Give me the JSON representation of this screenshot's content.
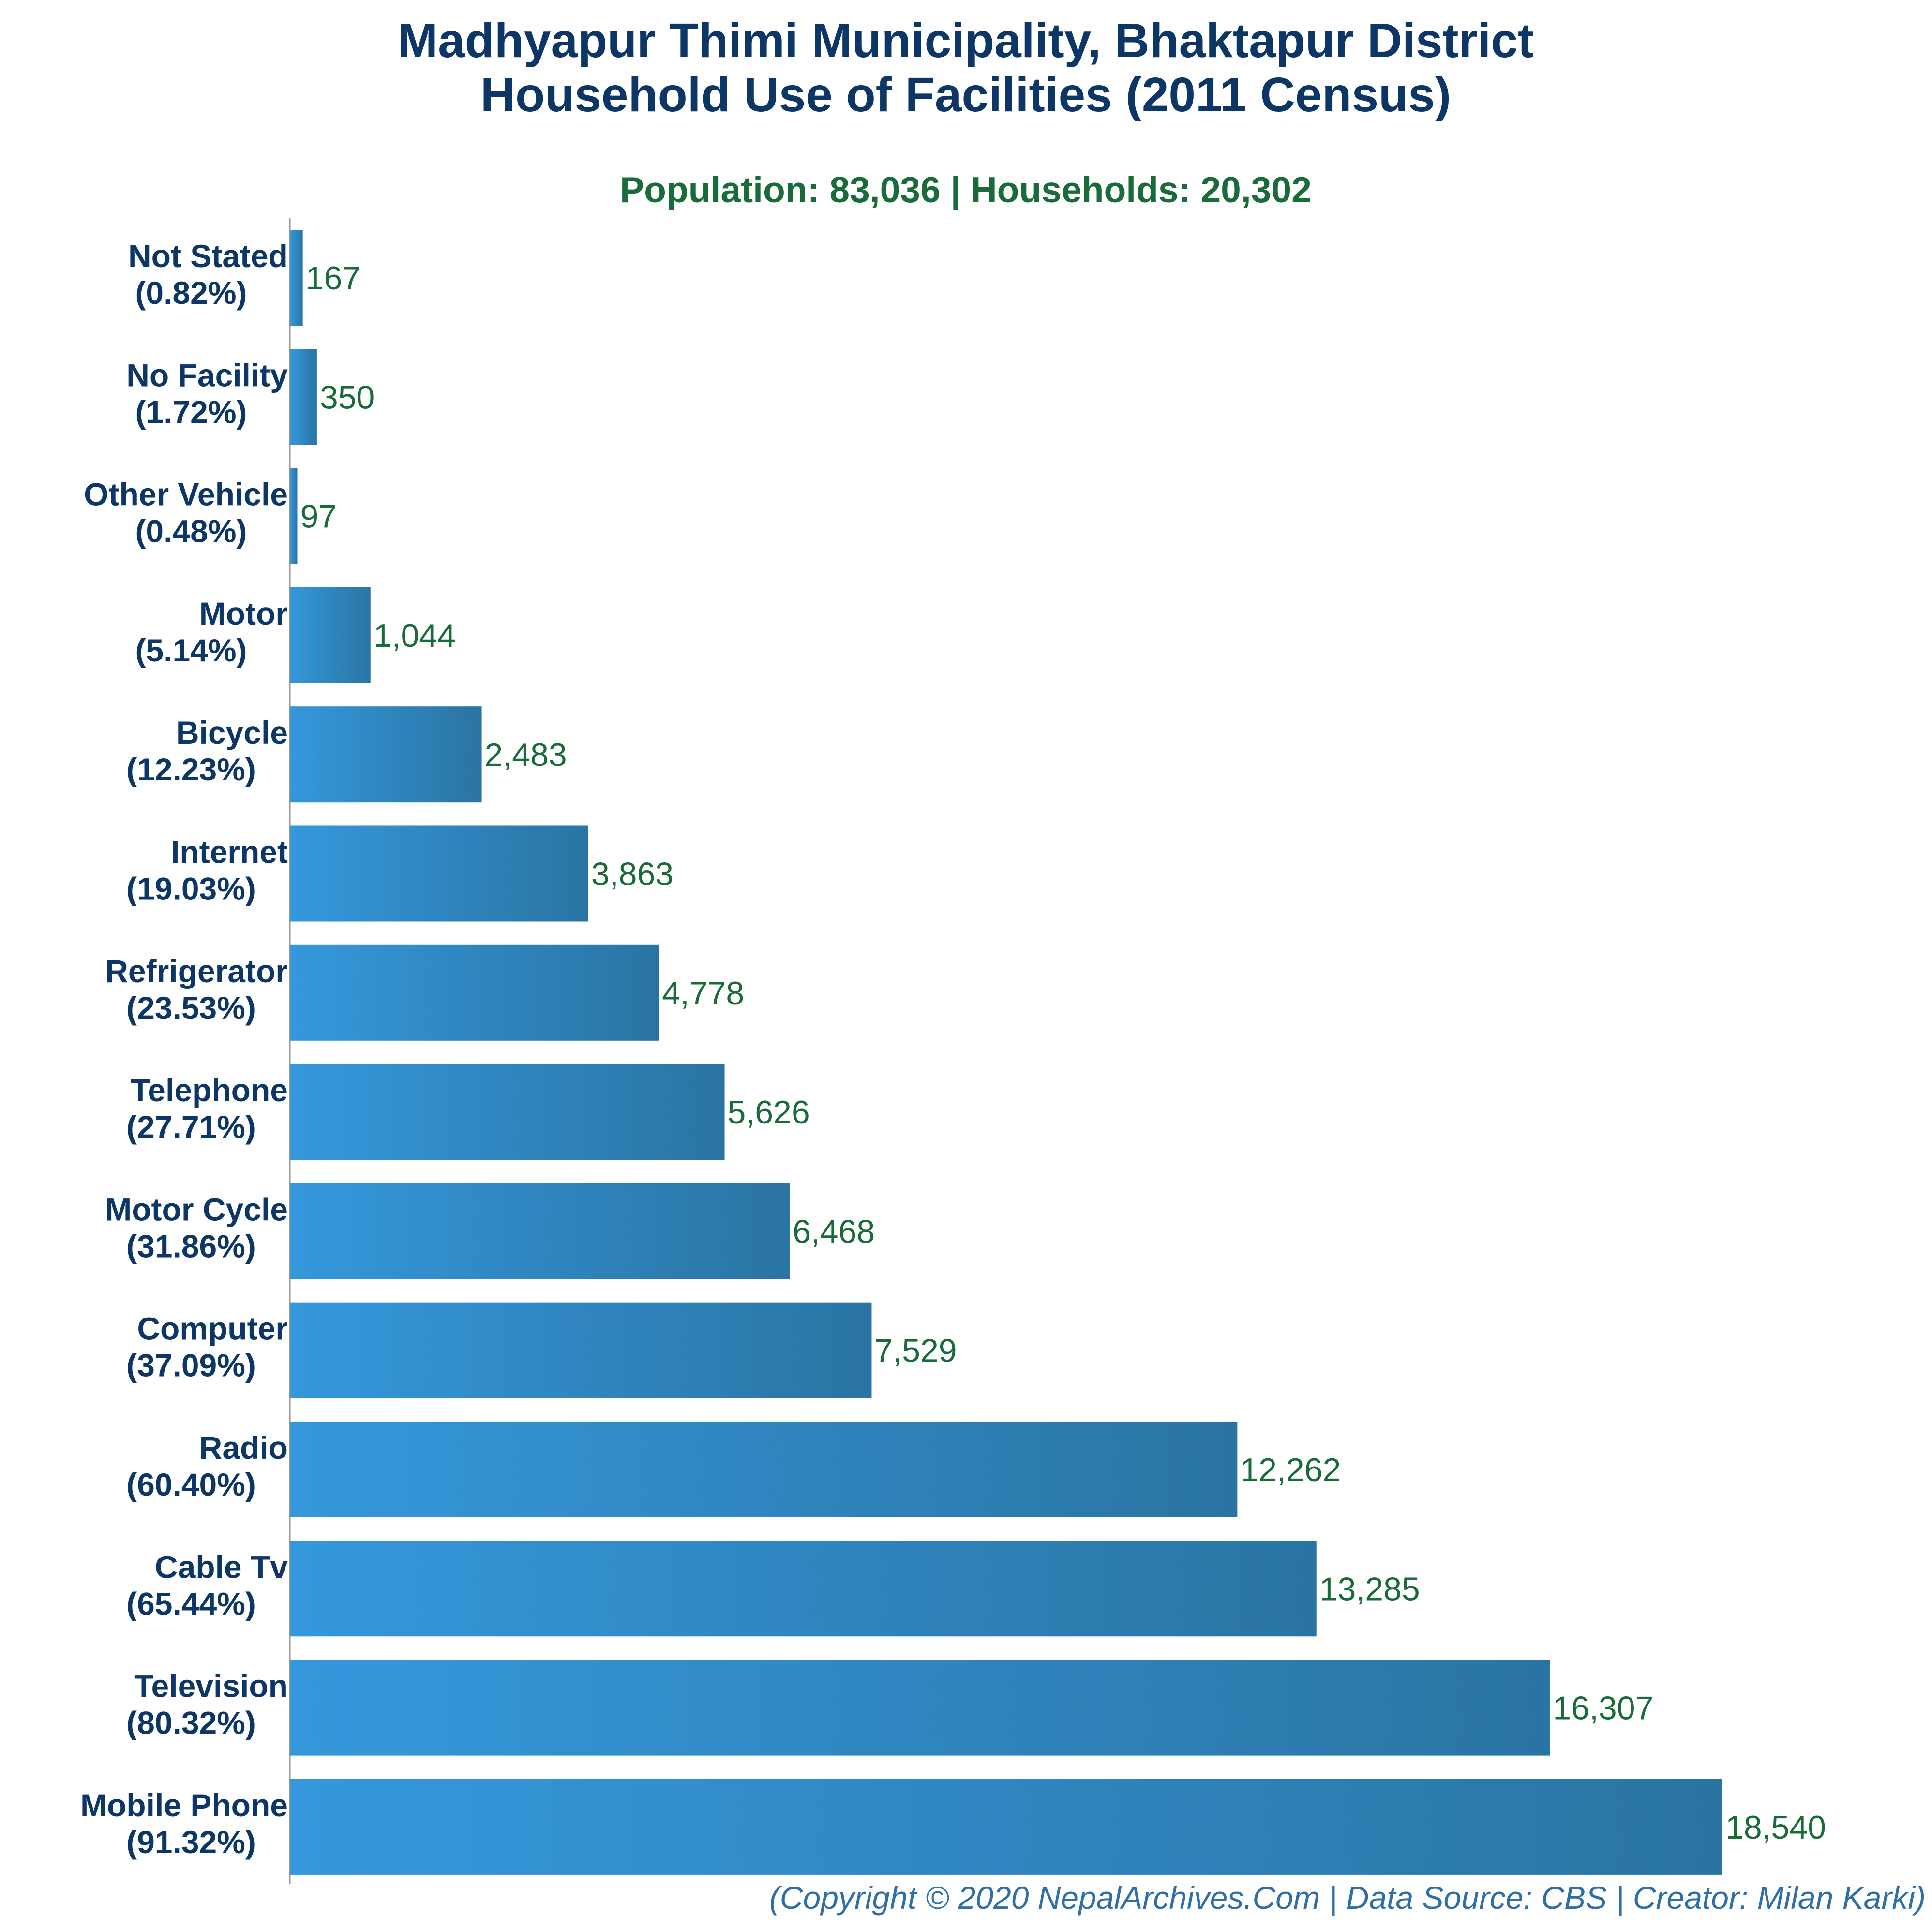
{
  "title_line1": "Madhyapur Thimi Municipality, Bhaktapur District",
  "title_line2": "Household Use of Facilities (2011 Census)",
  "subtitle": "Population: 83,036 | Households: 20,302",
  "footer": "(Copyright © 2020 NepalArchives.Com | Data Source: CBS | Creator: Milan Karki)",
  "colors": {
    "bar_left": "#3598dc",
    "bar_right": "#2a74a3",
    "title": "#0c3666",
    "value_label": "#1a6b3a",
    "footer": "#2f6fa8"
  },
  "chart_data": {
    "type": "bar",
    "orientation": "horizontal",
    "title": "Madhyapur Thimi Municipality, Bhaktapur District Household Use of Facilities (2011 Census)",
    "categories": [
      "Not Stated",
      "No Facility",
      "Other Vehicle",
      "Motor",
      "Bicycle",
      "Internet",
      "Refrigerator",
      "Telephone",
      "Motor Cycle",
      "Computer",
      "Radio",
      "Cable Tv",
      "Television",
      "Mobile Phone"
    ],
    "percent_labels": [
      "(0.82%)",
      "(1.72%)",
      "(0.48%)",
      "(5.14%)",
      "(12.23%)",
      "(19.03%)",
      "(23.53%)",
      "(27.71%)",
      "(31.86%)",
      "(37.09%)",
      "(60.40%)",
      "(65.44%)",
      "(80.32%)",
      "(91.32%)"
    ],
    "values": [
      167,
      350,
      97,
      1044,
      2483,
      3863,
      4778,
      5626,
      6468,
      7529,
      12262,
      13285,
      16307,
      18540
    ],
    "value_labels": [
      "167",
      "350",
      "97",
      "1,044",
      "2,483",
      "3,863",
      "4,778",
      "5,626",
      "6,468",
      "7,529",
      "12,262",
      "13,285",
      "16,307",
      "18,540"
    ],
    "xlabel": "",
    "ylabel": "",
    "xlim": [
      0,
      18540
    ],
    "grid": false,
    "legend": "none"
  }
}
